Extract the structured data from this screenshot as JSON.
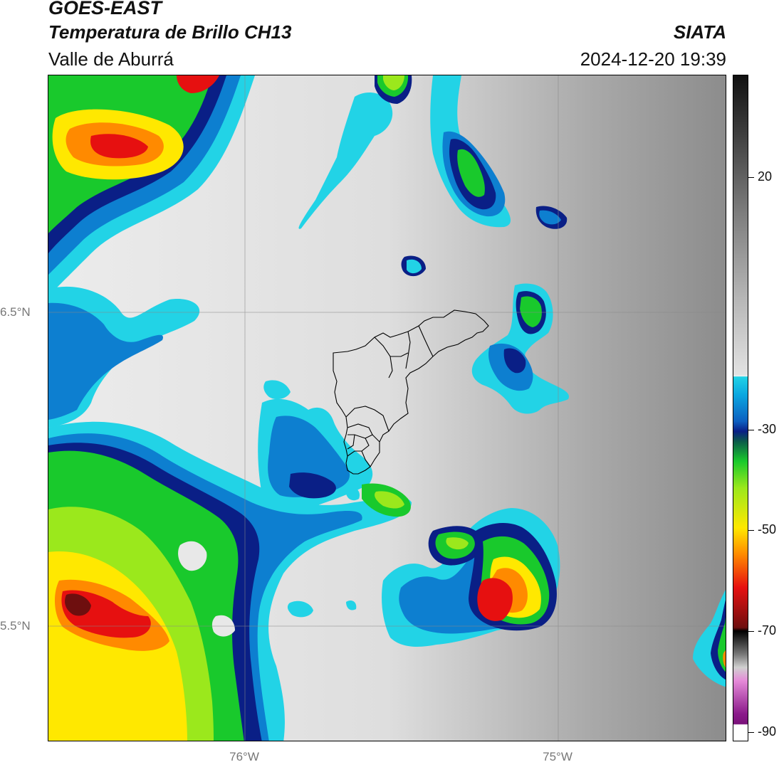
{
  "header": {
    "satellite": "GOES-EAST",
    "product": "Temperatura de Brillo CH13",
    "region": "Valle de Aburrá",
    "organization": "SIATA",
    "timestamp": "2024-12-20 19:39"
  },
  "axes": {
    "lat_labels": [
      "6.5°N",
      "5.5°N"
    ],
    "lon_labels": [
      "76°W",
      "75°W"
    ]
  },
  "colorbar": {
    "labels": [
      "20",
      "-30",
      "-50",
      "-70",
      "-90"
    ]
  },
  "palette": {
    "cyan": "#22d3e6",
    "blue": "#0d7fd0",
    "navy": "#0a1f86",
    "green": "#19c92c",
    "lime": "#9be81c",
    "yellow": "#ffe800",
    "orange": "#ff8a00",
    "red": "#e61010",
    "darkred": "#6e0f0f",
    "magenta": "#cc55c8",
    "gray_light": "#e9e9e9",
    "gray_dark": "#8a8a8a"
  }
}
